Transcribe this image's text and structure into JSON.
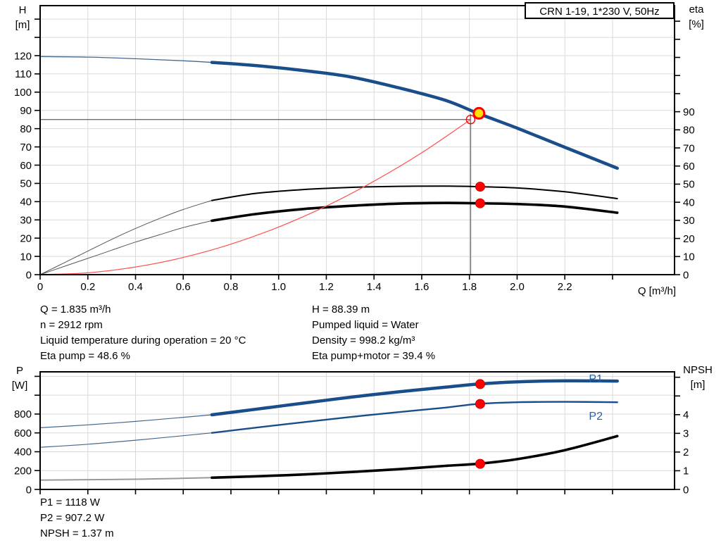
{
  "title_box": "CRN 1-19, 1*230 V, 50Hz",
  "axis_titles": {
    "h_line1": "H",
    "h_line2": "[m]",
    "eta_line1": "eta",
    "eta_line2": "[%]",
    "q": "Q [m³/h]",
    "p_line1": "P",
    "p_line2": "[W]",
    "npsh_line1": "NPSH",
    "npsh_line2": "[m]"
  },
  "readouts_top": {
    "left": [
      "Q = 1.835 m³/h",
      "n = 2912 rpm",
      "Liquid temperature during operation = 20 °C",
      "Eta pump = 48.6 %"
    ],
    "right": [
      "H = 88.39 m",
      "Pumped liquid = Water",
      "Density = 998.2 kg/m³",
      "Eta pump+motor = 39.4 %"
    ]
  },
  "readouts_bottom": [
    "P1 = 1118 W",
    "P2 = 907.2 W",
    "NPSH = 1.37 m"
  ],
  "colors": {
    "grid": "#D9D9D9",
    "frame": "#000000",
    "crosshair": "#6E6E6E",
    "curve_blue": "#1A4E8A",
    "thin_blue": "#46688F",
    "black": "#000000",
    "thin_gray": "#555555",
    "npsh_thin": "#999999",
    "red": "#FF0000",
    "system_red": "#FF5050",
    "yellow": "#FFE400",
    "label_blue": "#2B5FA5"
  },
  "chart_data": [
    {
      "id": "qh-eta-chart",
      "type": "line",
      "title": "CRN 1-19, 1*230 V, 50Hz",
      "x_axis": {
        "label": "Q [m³/h]",
        "min": 0,
        "max": 2.66,
        "tick_values": [
          0,
          0.2,
          0.4,
          0.6,
          0.8,
          1.0,
          1.2,
          1.4,
          1.6,
          1.8,
          2.0,
          2.2,
          2.4
        ],
        "tick_labels": [
          "0",
          "0.2",
          "0.4",
          "0.6",
          "0.8",
          "1.0",
          "1.2",
          "1.4",
          "1.6",
          "1.8",
          "2.0",
          "2.2"
        ]
      },
      "y_left": {
        "label": "H [m]",
        "min": 0,
        "max": 147.4,
        "tick_values": [
          0,
          10,
          20,
          30,
          40,
          50,
          60,
          70,
          80,
          90,
          100,
          110,
          120,
          130,
          140
        ],
        "tick_labels": [
          "0",
          "10",
          "20",
          "30",
          "40",
          "50",
          "60",
          "70",
          "80",
          "90",
          "100",
          "110",
          "120"
        ]
      },
      "y_right": {
        "label": "eta [%]",
        "min": 0,
        "max": 148.6,
        "tick_values": [
          0,
          10,
          20,
          30,
          40,
          50,
          60,
          70,
          80,
          90,
          100,
          110,
          120,
          130,
          140
        ],
        "tick_labels": [
          "0",
          "10",
          "20",
          "30",
          "40",
          "50",
          "60",
          "70",
          "80",
          "90"
        ]
      },
      "series": [
        {
          "name": "head-curve",
          "axis": "left",
          "split": 0.72,
          "thin": {
            "color": "#46688F",
            "width": 1.3
          },
          "thick": {
            "color": "#1A4E8A",
            "width": 4.5
          },
          "points": [
            [
              0,
              119.5
            ],
            [
              0.2,
              119.2
            ],
            [
              0.4,
              118.3
            ],
            [
              0.6,
              117.2
            ],
            [
              0.72,
              116.3
            ],
            [
              0.9,
              114.6
            ],
            [
              1.1,
              111.9
            ],
            [
              1.3,
              108.4
            ],
            [
              1.5,
              102.5
            ],
            [
              1.7,
              95.5
            ],
            [
              1.835,
              88.39
            ],
            [
              2.0,
              80.3
            ],
            [
              2.2,
              69.8
            ],
            [
              2.42,
              58.3
            ]
          ]
        },
        {
          "name": "eta-pump-curve",
          "axis": "right",
          "split": 0.72,
          "thin": {
            "color": "#555555",
            "width": 1
          },
          "thick": {
            "color": "#000000",
            "width": 2
          },
          "points": [
            [
              0,
              0
            ],
            [
              0.1,
              6.5
            ],
            [
              0.2,
              13
            ],
            [
              0.3,
              19.5
            ],
            [
              0.4,
              25.5
            ],
            [
              0.5,
              31
            ],
            [
              0.6,
              36
            ],
            [
              0.72,
              41
            ],
            [
              0.9,
              44.8
            ],
            [
              1.1,
              47
            ],
            [
              1.3,
              48.2
            ],
            [
              1.5,
              48.8
            ],
            [
              1.7,
              48.9
            ],
            [
              1.835,
              48.6
            ],
            [
              2.0,
              47.9
            ],
            [
              2.2,
              45.8
            ],
            [
              2.42,
              42
            ]
          ]
        },
        {
          "name": "eta-pump-motor-curve",
          "axis": "right",
          "split": 0.72,
          "thin": {
            "color": "#555555",
            "width": 1
          },
          "thick": {
            "color": "#000000",
            "width": 3.6
          },
          "points": [
            [
              0,
              0
            ],
            [
              0.1,
              4.5
            ],
            [
              0.2,
              9
            ],
            [
              0.3,
              13.5
            ],
            [
              0.4,
              18
            ],
            [
              0.5,
              22
            ],
            [
              0.6,
              26
            ],
            [
              0.72,
              29.8
            ],
            [
              0.9,
              33.4
            ],
            [
              1.1,
              36.2
            ],
            [
              1.3,
              38
            ],
            [
              1.5,
              39.2
            ],
            [
              1.7,
              39.6
            ],
            [
              1.835,
              39.4
            ],
            [
              2.0,
              39.0
            ],
            [
              2.2,
              37.6
            ],
            [
              2.42,
              34.2
            ]
          ]
        },
        {
          "name": "system-curve",
          "axis": "left",
          "split": null,
          "thick": {
            "color": "#FF5050",
            "width": 1.2
          },
          "points": [
            [
              0,
              0
            ],
            [
              0.2,
              1.0
            ],
            [
              0.4,
              4.2
            ],
            [
              0.6,
              9.4
            ],
            [
              0.8,
              16.7
            ],
            [
              1.0,
              26.1
            ],
            [
              1.2,
              37.6
            ],
            [
              1.4,
              51.2
            ],
            [
              1.6,
              66.8
            ],
            [
              1.805,
              85
            ]
          ]
        }
      ],
      "crosshair": {
        "q": 1.805,
        "v": 85,
        "axis": "left"
      },
      "markers": [
        {
          "name": "requested-duty-point",
          "style": "open-red",
          "q": 1.805,
          "v": 85,
          "axis": "left"
        },
        {
          "name": "duty-point",
          "style": "duty-yellow",
          "q": 1.84,
          "v": 88.39,
          "axis": "left"
        },
        {
          "name": "eta-pump-point",
          "style": "red-dot",
          "q": 1.845,
          "v": 48.6,
          "axis": "right"
        },
        {
          "name": "eta-pump-motor-point",
          "style": "red-dot",
          "q": 1.845,
          "v": 39.4,
          "axis": "right"
        }
      ],
      "series_labels": []
    },
    {
      "id": "power-npsh-chart",
      "type": "line",
      "title": "",
      "x_axis": {
        "label": "",
        "min": 0,
        "max": 2.66,
        "tick_values": [
          0,
          0.2,
          0.4,
          0.6,
          0.8,
          1.0,
          1.2,
          1.4,
          1.6,
          1.8,
          2.0,
          2.2,
          2.4
        ],
        "tick_labels": []
      },
      "y_left": {
        "label": "P [W]",
        "min": 0,
        "max": 1248,
        "tick_values": [
          0,
          200,
          400,
          600,
          800,
          1000,
          1200
        ],
        "tick_labels": [
          "0",
          "200",
          "400",
          "600",
          "800"
        ]
      },
      "y_right": {
        "label": "NPSH [m]",
        "min": 0,
        "max": 6.29,
        "tick_values": [
          0,
          1,
          2,
          3,
          4,
          5,
          6
        ],
        "tick_labels": [
          "0",
          "1",
          "2",
          "3",
          "4"
        ]
      },
      "series": [
        {
          "name": "p1-curve",
          "axis": "left",
          "split": 0.72,
          "thin": {
            "color": "#46688F",
            "width": 1.2
          },
          "thick": {
            "color": "#1A4E8A",
            "width": 4.5
          },
          "points": [
            [
              0,
              655
            ],
            [
              0.2,
              685
            ],
            [
              0.4,
              722
            ],
            [
              0.6,
              765
            ],
            [
              0.72,
              792
            ],
            [
              0.9,
              850
            ],
            [
              1.1,
              915
            ],
            [
              1.3,
              978
            ],
            [
              1.5,
              1035
            ],
            [
              1.7,
              1085
            ],
            [
              1.835,
              1118
            ],
            [
              2.0,
              1142
            ],
            [
              2.2,
              1152
            ],
            [
              2.42,
              1150
            ]
          ]
        },
        {
          "name": "p2-curve",
          "axis": "left",
          "split": 0.72,
          "thin": {
            "color": "#46688F",
            "width": 1.2
          },
          "thick": {
            "color": "#1A4E8A",
            "width": 2.4
          },
          "points": [
            [
              0,
              447
            ],
            [
              0.2,
              480
            ],
            [
              0.4,
              522
            ],
            [
              0.6,
              570
            ],
            [
              0.72,
              600
            ],
            [
              0.9,
              655
            ],
            [
              1.1,
              712
            ],
            [
              1.3,
              768
            ],
            [
              1.5,
              820
            ],
            [
              1.7,
              868
            ],
            [
              1.835,
              907.2
            ],
            [
              2.0,
              925
            ],
            [
              2.2,
              930
            ],
            [
              2.42,
              925
            ]
          ]
        },
        {
          "name": "npsh-curve",
          "axis": "right",
          "split": 0.72,
          "thin": {
            "color": "#999999",
            "width": 2
          },
          "thick": {
            "color": "#000000",
            "width": 3.6
          },
          "points": [
            [
              0,
              0.5
            ],
            [
              0.3,
              0.53
            ],
            [
              0.5,
              0.57
            ],
            [
              0.72,
              0.63
            ],
            [
              0.9,
              0.7
            ],
            [
              1.1,
              0.8
            ],
            [
              1.3,
              0.93
            ],
            [
              1.5,
              1.08
            ],
            [
              1.7,
              1.26
            ],
            [
              1.835,
              1.37
            ],
            [
              2.0,
              1.62
            ],
            [
              2.2,
              2.1
            ],
            [
              2.42,
              2.85
            ]
          ]
        }
      ],
      "crosshair": null,
      "markers": [
        {
          "name": "p1-point",
          "style": "red-dot",
          "q": 1.845,
          "v": 1118,
          "axis": "left"
        },
        {
          "name": "p2-point",
          "style": "red-dot",
          "q": 1.845,
          "v": 907.2,
          "axis": "left"
        },
        {
          "name": "npsh-point",
          "style": "red-dot",
          "q": 1.845,
          "v": 1.37,
          "axis": "right"
        }
      ],
      "series_labels": [
        {
          "text": "P1",
          "q": 2.33,
          "v": 1174,
          "axis": "left",
          "color": "#2B5FA5"
        },
        {
          "text": "P2",
          "q": 2.33,
          "v": 778,
          "axis": "left",
          "color": "#2B5FA5"
        }
      ]
    }
  ]
}
